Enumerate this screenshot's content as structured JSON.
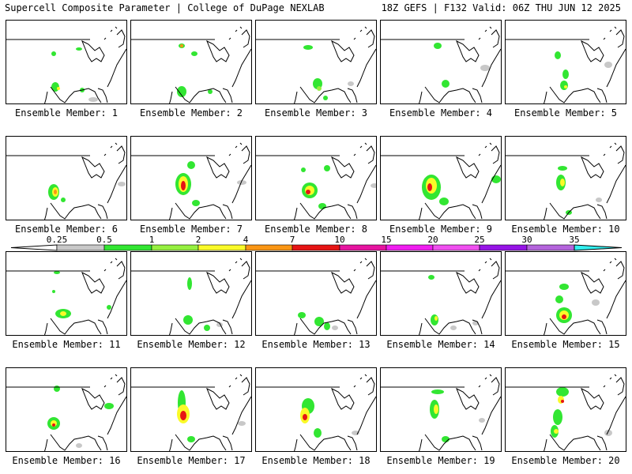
{
  "header": {
    "title_left": "Supercell Composite Parameter | College of DuPage NEXLAB",
    "title_right": "18Z GEFS | F132 Valid: 06Z THU JUN 12 2025"
  },
  "colorbar": {
    "ticks": [
      "0.25",
      "0.5",
      "1",
      "2",
      "4",
      "7",
      "10",
      "15",
      "20",
      "25",
      "30",
      "35"
    ],
    "colors": [
      "#c8c8c8",
      "#32e632",
      "#96f040",
      "#fafa28",
      "#fa9614",
      "#e61414",
      "#e614a0",
      "#f01ef0",
      "#f050f0",
      "#9614e6",
      "#b464dc",
      "#32f0f0"
    ]
  },
  "members": [
    {
      "label": "Ensemble Member: 1"
    },
    {
      "label": "Ensemble Member: 2"
    },
    {
      "label": "Ensemble Member: 3"
    },
    {
      "label": "Ensemble Member: 4"
    },
    {
      "label": "Ensemble Member: 5"
    },
    {
      "label": "Ensemble Member: 6"
    },
    {
      "label": "Ensemble Member: 7"
    },
    {
      "label": "Ensemble Member: 8"
    },
    {
      "label": "Ensemble Member: 9"
    },
    {
      "label": "Ensemble Member: 10"
    },
    {
      "label": "Ensemble Member: 11"
    },
    {
      "label": "Ensemble Member: 12"
    },
    {
      "label": "Ensemble Member: 13"
    },
    {
      "label": "Ensemble Member: 14"
    },
    {
      "label": "Ensemble Member: 15"
    },
    {
      "label": "Ensemble Member: 16"
    },
    {
      "label": "Ensemble Member: 17"
    },
    {
      "label": "Ensemble Member: 18"
    },
    {
      "label": "Ensemble Member: 19"
    },
    {
      "label": "Ensemble Member: 20"
    }
  ]
}
